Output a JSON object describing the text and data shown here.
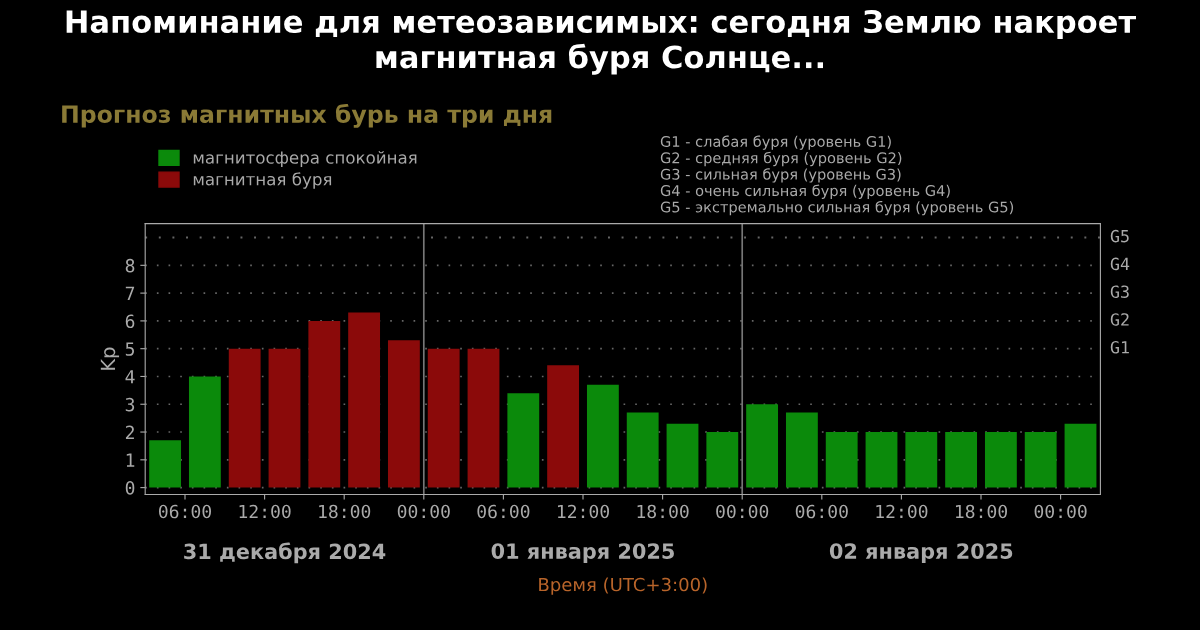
{
  "chart_data": {
    "type": "bar",
    "title": "Прогноз магнитных бурь на три дня",
    "xlabel": "Время (UTC+3:00)",
    "ylabel": "Kp",
    "x": [
      "2024-12-31T04:30",
      "2024-12-31T07:30",
      "2024-12-31T10:30",
      "2024-12-31T13:30",
      "2024-12-31T16:30",
      "2024-12-31T19:30",
      "2024-12-31T22:30",
      "2025-01-01T01:30",
      "2025-01-01T04:30",
      "2025-01-01T07:30",
      "2025-01-01T10:30",
      "2025-01-01T13:30",
      "2025-01-01T16:30",
      "2025-01-01T19:30",
      "2025-01-01T22:30",
      "2025-01-02T01:30",
      "2025-01-02T04:30",
      "2025-01-02T07:30",
      "2025-01-02T10:30",
      "2025-01-02T13:30",
      "2025-01-02T16:30",
      "2025-01-02T19:30",
      "2025-01-02T22:30",
      "2025-01-03T01:30"
    ],
    "series": [
      {
        "name": "магнитосфера спокойная",
        "color": "#0b8a0b",
        "values": [
          1.7,
          4,
          null,
          null,
          null,
          null,
          null,
          null,
          null,
          3.4,
          null,
          3.7,
          2.7,
          2.3,
          2.0,
          3.0,
          2.7,
          2.0,
          2.0,
          2.0,
          2.0,
          2.0,
          2.0,
          2.3
        ]
      },
      {
        "name": "магнитная буря",
        "color": "#8b0a0a",
        "values": [
          null,
          null,
          5,
          5,
          6,
          6.3,
          5.3,
          5,
          5,
          null,
          4.4,
          null,
          null,
          null,
          null,
          null,
          null,
          null,
          null,
          null,
          null,
          null,
          null,
          null
        ]
      }
    ],
    "xlim": [
      "2024-12-31T03:00",
      "2025-01-03T03:00"
    ],
    "xticks": [
      {
        "value": "2024-12-31T06:00",
        "label": "06:00"
      },
      {
        "value": "2024-12-31T12:00",
        "label": "12:00"
      },
      {
        "value": "2024-12-31T18:00",
        "label": "18:00"
      },
      {
        "value": "2025-01-01T00:00",
        "label": "00:00"
      },
      {
        "value": "2025-01-01T06:00",
        "label": "06:00"
      },
      {
        "value": "2025-01-01T12:00",
        "label": "12:00"
      },
      {
        "value": "2025-01-01T18:00",
        "label": "18:00"
      },
      {
        "value": "2025-01-02T00:00",
        "label": "00:00"
      },
      {
        "value": "2025-01-02T06:00",
        "label": "06:00"
      },
      {
        "value": "2025-01-02T12:00",
        "label": "12:00"
      },
      {
        "value": "2025-01-02T18:00",
        "label": "18:00"
      },
      {
        "value": "2025-01-03T00:00",
        "label": "00:00"
      }
    ],
    "ylim": [
      -0.25,
      9.5
    ],
    "yticks": [
      0,
      1,
      2,
      3,
      4,
      5,
      6,
      7,
      8
    ],
    "ref_lines": [
      {
        "axis": "x",
        "value": "2025-01-01T00:00",
        "color": "#777777",
        "line_style": "solid"
      },
      {
        "axis": "x",
        "value": "2025-01-02T00:00",
        "color": "#777777",
        "line_style": "solid"
      },
      {
        "axis": "y",
        "value": 9,
        "label": "G5",
        "color": "#666666",
        "line_style": "dotted"
      }
    ],
    "grid": "y",
    "legend": "top left",
    "annotations": [
      "Напоминание для метеозависимых: сегодня Землю накроет магнитная буря Солнце...",
      "G1 - слабая буря (уровень G1)",
      "G2 - средняя буря (уровень G2)",
      "G3 - сильная буря (уровень G3)",
      "G4 - очень сильная буря (уровень G4)",
      "G5 - экстремально сильная буря (уровень G5)",
      "31 декабря 2024",
      "01 января 2025",
      "02 января 2025",
      "G1",
      "G2",
      "G3",
      "G4"
    ]
  }
}
